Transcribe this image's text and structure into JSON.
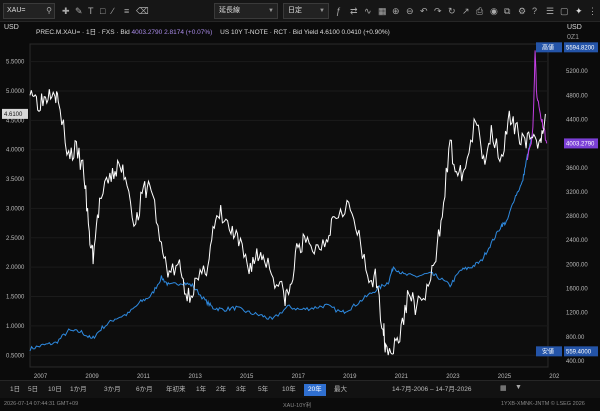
{
  "toolbar": {
    "search_value": "XAU=",
    "select1": "延長線",
    "select2": "日定",
    "right_currency": "USD"
  },
  "chart_header": {
    "left_unit": "USD",
    "right_unit": "USD",
    "right_sub": "0Z1",
    "legend_series1_name": "PREC.M.XAU= · 1日 · FXS · Bid",
    "legend_series1_value": "4003.2790 2.8174 (+0.07%)",
    "legend_series2_name": "US 10Y T-NOTE · RCT · Bid Yield",
    "legend_series2_value": "4.6100 0.0410 (+0.90%)"
  },
  "chart_data": {
    "type": "line",
    "x_ticks": [
      "2007",
      "2009",
      "2011",
      "2013",
      "2015",
      "2017",
      "2019",
      "2021",
      "2023",
      "2025",
      "202"
    ],
    "left_axis_ticks": [
      "5.5000",
      "5.0000",
      "4.5000",
      "4.0000",
      "3.5000",
      "3.0000",
      "2.5000",
      "2.0000",
      "1.5000",
      "1.0000",
      "0.5000"
    ],
    "right_axis_ticks": [
      "5200.00",
      "4800.00",
      "4400.00",
      "4000.00",
      "3600.00",
      "3200.00",
      "2800.00",
      "2400.00",
      "2000.00",
      "1600.00",
      "1200.00",
      "800.00",
      "400.00"
    ],
    "left_ylim": [
      0.3,
      5.8
    ],
    "right_ylim": [
      300,
      5650
    ],
    "xlim": [
      2006.5,
      2026.6
    ],
    "labels": {
      "current_left": "4.6100",
      "current_right": "4003.2790",
      "high_label": "高値",
      "high_value": "5594.8200",
      "low_label": "安値",
      "low_value": "559.4000"
    },
    "colors": {
      "yield": "#ffffff",
      "gold": "#2e8ae0",
      "gold_recent": "#8a3ff0",
      "gold_spike": "#c33fe3",
      "tag": "#2454a8",
      "tag_purple": "#7b3fd6"
    },
    "series": [
      {
        "x": [
          2006.5,
          2006.8,
          2007.1,
          2007.4,
          2007.6,
          2008.0,
          2008.3,
          2008.6,
          2008.8,
          2008.95,
          2009.2,
          2009.6,
          2009.9,
          2010.2,
          2010.6,
          2010.9,
          2011.2,
          2011.6,
          2011.9,
          2012.3,
          2012.6,
          2012.9,
          2013.3,
          2013.6,
          2013.9,
          2014.3,
          2014.6,
          2015.0,
          2015.3,
          2015.6,
          2016.0,
          2016.4,
          2016.6,
          2016.9,
          2017.2,
          2017.6,
          2018.0,
          2018.3,
          2018.8,
          2019.2,
          2019.6,
          2019.9,
          2020.2,
          2020.3,
          2020.6,
          2020.9,
          2021.2,
          2021.5,
          2021.9,
          2022.2,
          2022.5,
          2022.8,
          2023.1,
          2023.4,
          2023.8,
          2024.1,
          2024.4,
          2024.8,
          2025.1,
          2025.4,
          2025.7,
          2026.0,
          2026.3,
          2026.5
        ],
        "values": [
          5.1,
          4.8,
          4.9,
          5.1,
          4.8,
          3.9,
          4.0,
          3.6,
          2.5,
          2.2,
          3.1,
          3.5,
          3.7,
          3.6,
          2.7,
          3.3,
          3.4,
          2.3,
          1.9,
          2.0,
          1.5,
          1.7,
          1.9,
          2.6,
          2.9,
          2.6,
          2.4,
          2.0,
          2.2,
          2.2,
          1.8,
          1.5,
          1.6,
          2.4,
          2.4,
          2.3,
          2.5,
          2.9,
          3.1,
          2.6,
          1.8,
          1.8,
          1.0,
          0.65,
          0.6,
          0.9,
          1.6,
          1.3,
          1.6,
          2.0,
          3.0,
          4.1,
          3.5,
          3.7,
          4.5,
          3.8,
          4.3,
          3.9,
          4.5,
          4.3,
          4.2,
          4.1,
          4.2,
          4.61
        ]
      },
      {
        "x": [
          2006.5,
          2007.0,
          2007.5,
          2008.0,
          2008.5,
          2008.9,
          2009.3,
          2009.8,
          2010.3,
          2010.8,
          2011.2,
          2011.6,
          2011.9,
          2012.4,
          2012.8,
          2013.3,
          2013.6,
          2014.0,
          2014.5,
          2015.0,
          2015.5,
          2015.9,
          2016.5,
          2017.0,
          2017.5,
          2018.0,
          2018.6,
          2019.0,
          2019.5,
          2020.0,
          2020.4,
          2020.6,
          2021.0,
          2021.5,
          2022.0,
          2022.3,
          2022.8,
          2023.2,
          2023.6,
          2024.0,
          2024.4,
          2024.8,
          2025.0,
          2025.3,
          2025.6,
          2025.8,
          2026.0
        ],
        "values": [
          600,
          660,
          700,
          900,
          880,
          760,
          950,
          1100,
          1180,
          1380,
          1480,
          1780,
          1650,
          1700,
          1650,
          1400,
          1280,
          1250,
          1280,
          1200,
          1150,
          1080,
          1300,
          1250,
          1280,
          1320,
          1200,
          1290,
          1450,
          1600,
          1700,
          1960,
          1830,
          1800,
          1850,
          1800,
          1650,
          1900,
          1950,
          2050,
          2350,
          2650,
          2700,
          3100,
          3350,
          3800,
          4150
        ]
      },
      {
        "x": [
          2025.8,
          2026.0,
          2026.05,
          2026.1,
          2026.15,
          2026.25,
          2026.35,
          2026.45,
          2026.55
        ],
        "values": [
          3800,
          4150,
          4700,
          5594,
          4900,
          4600,
          4400,
          4250,
          4003
        ]
      }
    ]
  },
  "range_buttons": [
    "1日",
    "5日",
    "10日",
    "1か月",
    "3か月",
    "6か月",
    "年初来",
    "1年",
    "2年",
    "3年",
    "5年",
    "10年",
    "20年",
    "最大"
  ],
  "date_range": "14-7月-2006 – 14-7月-2026",
  "footer": {
    "left": "2026-07-14 07:44:31 GMT+09",
    "mid": "XAU-10Y利",
    "right": "1YXB-XMNK-JNTM © LSEG 2026"
  }
}
